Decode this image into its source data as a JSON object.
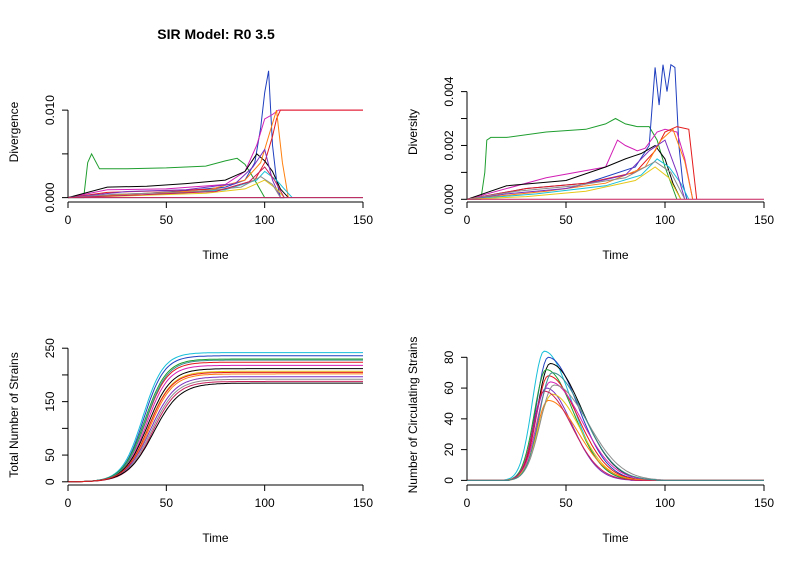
{
  "figure_title": "SIR Model: R0 3.5",
  "palette": [
    "#000000",
    "#e41a1c",
    "#1f9e2f",
    "#1f3fbf",
    "#17bfd9",
    "#d21fb5",
    "#e6c81a",
    "#8c8c8c",
    "#ff7f0e",
    "#7b2fbf",
    "#c71f5a",
    "#3a8f8f"
  ],
  "chart_data": [
    {
      "type": "line",
      "title": "SIR Model: R0 3.5",
      "xlabel": "Time",
      "ylabel": "Divergence",
      "xlim": [
        0,
        150
      ],
      "ylim": [
        -0.0005,
        0.0155
      ],
      "xticks": [
        0,
        50,
        100,
        150
      ],
      "yticks": [
        0.0,
        0.005,
        0.01
      ],
      "ytick_labels": [
        "0.000",
        "",
        "0.010"
      ],
      "grid": false,
      "legend": "none",
      "note_series": "many overlapping stochastic runs; representative series shown",
      "series": [
        {
          "color": "#1f9e2f",
          "x": [
            0,
            8,
            10,
            12,
            16,
            30,
            50,
            70,
            80,
            86,
            90,
            95,
            100,
            104,
            110
          ],
          "y": [
            0,
            0,
            0.004,
            0.005,
            0.0033,
            0.0033,
            0.0034,
            0.0036,
            0.0042,
            0.0045,
            0.0038,
            0.002,
            0,
            0,
            0
          ]
        },
        {
          "color": "#1f3fbf",
          "x": [
            0,
            20,
            40,
            60,
            80,
            90,
            95,
            98,
            100,
            102,
            104,
            106,
            108,
            110
          ],
          "y": [
            0,
            0.0003,
            0.0005,
            0.0008,
            0.0012,
            0.002,
            0.004,
            0.008,
            0.012,
            0.0145,
            0.006,
            0.002,
            0,
            0
          ]
        },
        {
          "color": "#d21fb5",
          "x": [
            0,
            20,
            50,
            80,
            90,
            96,
            100,
            104,
            107,
            110,
            115,
            130,
            150
          ],
          "y": [
            0,
            0.0009,
            0.001,
            0.0015,
            0.003,
            0.006,
            0.009,
            0.0095,
            0.01,
            0.01,
            0.01,
            0.01,
            0.01
          ]
        },
        {
          "color": "#e41a1c",
          "x": [
            0,
            20,
            50,
            80,
            95,
            100,
            104,
            106,
            108,
            112,
            130,
            150
          ],
          "y": [
            0,
            0.0006,
            0.0008,
            0.001,
            0.002,
            0.004,
            0.007,
            0.009,
            0.01,
            0.01,
            0.01,
            0.01
          ]
        },
        {
          "color": "#000000",
          "x": [
            0,
            20,
            40,
            60,
            80,
            90,
            96,
            100,
            104,
            108,
            112
          ],
          "y": [
            0,
            0.0012,
            0.0013,
            0.0016,
            0.002,
            0.003,
            0.005,
            0.0042,
            0.003,
            0.001,
            0
          ]
        },
        {
          "color": "#ff7f0e",
          "x": [
            0,
            40,
            70,
            90,
            98,
            102,
            106,
            109,
            112
          ],
          "y": [
            0,
            0.0005,
            0.0008,
            0.002,
            0.004,
            0.007,
            0.01,
            0.004,
            0
          ]
        },
        {
          "color": "#17bfd9",
          "x": [
            0,
            50,
            80,
            96,
            100,
            106,
            110,
            114
          ],
          "y": [
            0,
            0.0004,
            0.0009,
            0.002,
            0.003,
            0.002,
            0.001,
            0
          ]
        },
        {
          "color": "#7b2fbf",
          "x": [
            0,
            30,
            60,
            85,
            94,
            100,
            104,
            108
          ],
          "y": [
            0,
            0.0007,
            0.0009,
            0.0016,
            0.0035,
            0.0055,
            0.002,
            0
          ]
        },
        {
          "color": "#e6c81a",
          "x": [
            0,
            30,
            70,
            90,
            100,
            106,
            110
          ],
          "y": [
            0,
            0.0002,
            0.0005,
            0.001,
            0.002,
            0.001,
            0
          ]
        },
        {
          "color": "#8c8c8c",
          "x": [
            0,
            25,
            60,
            88,
            98,
            104,
            108
          ],
          "y": [
            0,
            0.0004,
            0.0006,
            0.0012,
            0.0024,
            0.0015,
            0
          ]
        },
        {
          "color": "#c71f5a",
          "x": [
            0,
            35,
            75,
            92,
            100,
            105,
            110
          ],
          "y": [
            0,
            0.0003,
            0.0007,
            0.0018,
            0.0035,
            0.002,
            0
          ]
        },
        {
          "color": "#3a8f8f",
          "x": [
            0,
            150
          ],
          "y": [
            0,
            0
          ]
        },
        {
          "color": "#c71f5a",
          "x": [
            0,
            150
          ],
          "y": [
            0,
            0
          ]
        }
      ]
    },
    {
      "type": "line",
      "title": "",
      "xlabel": "Time",
      "ylabel": "Diversity",
      "xlim": [
        0,
        150
      ],
      "ylim": [
        -0.0001,
        0.0051
      ],
      "xticks": [
        0,
        50,
        100,
        150
      ],
      "yticks": [
        0.0,
        0.001,
        0.002,
        0.003,
        0.004
      ],
      "ytick_labels": [
        "0.000",
        "",
        "0.002",
        "",
        "0.004"
      ],
      "grid": false,
      "legend": "none",
      "series": [
        {
          "color": "#1f9e2f",
          "x": [
            0,
            7,
            9,
            10,
            12,
            20,
            40,
            60,
            70,
            75,
            80,
            86,
            92,
            96,
            100,
            104,
            106
          ],
          "y": [
            0,
            0,
            0.001,
            0.0022,
            0.0023,
            0.0023,
            0.0025,
            0.0026,
            0.0028,
            0.003,
            0.0028,
            0.0027,
            0.0027,
            0.0022,
            0.0012,
            0.0004,
            0
          ]
        },
        {
          "color": "#1f3fbf",
          "x": [
            0,
            30,
            60,
            85,
            92,
            95,
            97,
            99,
            101,
            103,
            105,
            107,
            109,
            111
          ],
          "y": [
            0,
            0.0004,
            0.0006,
            0.0012,
            0.002,
            0.0049,
            0.0035,
            0.005,
            0.004,
            0.005,
            0.0049,
            0.002,
            0.0006,
            0
          ]
        },
        {
          "color": "#d21fb5",
          "x": [
            0,
            40,
            70,
            76,
            80,
            86,
            90,
            96,
            100,
            106,
            110,
            114
          ],
          "y": [
            0,
            0.0008,
            0.0012,
            0.0022,
            0.002,
            0.0018,
            0.0019,
            0.0025,
            0.0026,
            0.0025,
            0.0015,
            0
          ]
        },
        {
          "color": "#000000",
          "x": [
            0,
            20,
            50,
            70,
            80,
            88,
            95,
            100,
            104,
            108
          ],
          "y": [
            0,
            0.0005,
            0.0007,
            0.0012,
            0.0015,
            0.0017,
            0.002,
            0.0015,
            0.0006,
            0
          ]
        },
        {
          "color": "#e41a1c",
          "x": [
            0,
            30,
            60,
            85,
            95,
            100,
            106,
            112,
            116
          ],
          "y": [
            0,
            0.0004,
            0.0006,
            0.001,
            0.0018,
            0.0025,
            0.0027,
            0.0026,
            0
          ]
        },
        {
          "color": "#ff7f0e",
          "x": [
            0,
            40,
            70,
            90,
            98,
            104,
            110,
            114
          ],
          "y": [
            0,
            0.0003,
            0.0006,
            0.0012,
            0.0022,
            0.0026,
            0.0014,
            0
          ]
        },
        {
          "color": "#17bfd9",
          "x": [
            0,
            35,
            70,
            88,
            96,
            102,
            108,
            112
          ],
          "y": [
            0,
            0.0002,
            0.0005,
            0.0009,
            0.0015,
            0.0012,
            0.0006,
            0
          ]
        },
        {
          "color": "#7b2fbf",
          "x": [
            0,
            20,
            50,
            80,
            92,
            100,
            106,
            110
          ],
          "y": [
            0,
            0.0002,
            0.0004,
            0.0009,
            0.0018,
            0.0022,
            0.001,
            0
          ]
        },
        {
          "color": "#e6c81a",
          "x": [
            0,
            30,
            60,
            85,
            95,
            102,
            108
          ],
          "y": [
            0,
            0.0001,
            0.0003,
            0.0007,
            0.0012,
            0.0008,
            0
          ]
        },
        {
          "color": "#8c8c8c",
          "x": [
            0,
            25,
            55,
            80,
            95,
            103,
            110
          ],
          "y": [
            0,
            0.0003,
            0.0005,
            0.0008,
            0.0014,
            0.001,
            0
          ]
        },
        {
          "color": "#c71f5a",
          "x": [
            0,
            150
          ],
          "y": [
            0,
            0
          ]
        }
      ]
    },
    {
      "type": "line",
      "title": "",
      "xlabel": "Time",
      "ylabel": "Total Number of Strains",
      "xlim": [
        0,
        150
      ],
      "ylim": [
        -6,
        256
      ],
      "xticks": [
        0,
        50,
        100,
        150
      ],
      "yticks": [
        0,
        50,
        100,
        150,
        200,
        250
      ],
      "ytick_labels": [
        "0",
        "50",
        "",
        "150",
        "",
        "250"
      ],
      "grid": false,
      "legend": "none",
      "logistic_runs": [
        {
          "color": "#17bfd9",
          "asymptote": 242,
          "midpoint": 38,
          "rate": 0.19
        },
        {
          "color": "#1f3fbf",
          "asymptote": 236,
          "midpoint": 38.5,
          "rate": 0.19
        },
        {
          "color": "#1f9e2f",
          "asymptote": 230,
          "midpoint": 39,
          "rate": 0.18
        },
        {
          "color": "#e41a1c",
          "asymptote": 224,
          "midpoint": 39.5,
          "rate": 0.18
        },
        {
          "color": "#d21fb5",
          "asymptote": 218,
          "midpoint": 40,
          "rate": 0.18
        },
        {
          "color": "#000000",
          "asymptote": 212,
          "midpoint": 40.5,
          "rate": 0.17
        },
        {
          "color": "#e6c81a",
          "asymptote": 207,
          "midpoint": 41,
          "rate": 0.17
        },
        {
          "color": "#ff7f0e",
          "asymptote": 202,
          "midpoint": 41.5,
          "rate": 0.17
        },
        {
          "color": "#7b2fbf",
          "asymptote": 197,
          "midpoint": 42,
          "rate": 0.16
        },
        {
          "color": "#8c8c8c",
          "asymptote": 192,
          "midpoint": 42.5,
          "rate": 0.16
        },
        {
          "color": "#c71f5a",
          "asymptote": 188,
          "midpoint": 43,
          "rate": 0.16
        },
        {
          "color": "#000000",
          "asymptote": 185,
          "midpoint": 43.5,
          "rate": 0.15
        },
        {
          "color": "#3a8f8f",
          "asymptote": 228,
          "midpoint": 39.5,
          "rate": 0.18
        },
        {
          "color": "#e41a1c",
          "asymptote": 205,
          "midpoint": 41,
          "rate": 0.17
        }
      ]
    },
    {
      "type": "line",
      "title": "",
      "xlabel": "Time",
      "ylabel": "Number of Circulating Strains",
      "xlim": [
        0,
        150
      ],
      "ylim": [
        -3,
        88
      ],
      "xticks": [
        0,
        50,
        100,
        150
      ],
      "yticks": [
        0,
        20,
        40,
        60,
        80
      ],
      "ytick_labels": [
        "0",
        "20",
        "40",
        "60",
        "80"
      ],
      "grid": false,
      "legend": "none",
      "peak_runs": [
        {
          "color": "#17bfd9",
          "peak": 84,
          "peak_time": 39,
          "rise": 6,
          "decay": 14
        },
        {
          "color": "#1f3fbf",
          "peak": 80,
          "peak_time": 41,
          "rise": 6,
          "decay": 15
        },
        {
          "color": "#000000",
          "peak": 76,
          "peak_time": 42,
          "rise": 6.5,
          "decay": 16
        },
        {
          "color": "#1f9e2f",
          "peak": 72,
          "peak_time": 40,
          "rise": 6,
          "decay": 14
        },
        {
          "color": "#e41a1c",
          "peak": 68,
          "peak_time": 41,
          "rise": 6,
          "decay": 15
        },
        {
          "color": "#d21fb5",
          "peak": 64,
          "peak_time": 42,
          "rise": 6.5,
          "decay": 16
        },
        {
          "color": "#7b2fbf",
          "peak": 60,
          "peak_time": 40,
          "rise": 6,
          "decay": 13
        },
        {
          "color": "#e6c81a",
          "peak": 56,
          "peak_time": 43,
          "rise": 7,
          "decay": 14
        },
        {
          "color": "#ff7f0e",
          "peak": 52,
          "peak_time": 41,
          "rise": 6,
          "decay": 15
        },
        {
          "color": "#8c8c8c",
          "peak": 62,
          "peak_time": 44,
          "rise": 7,
          "decay": 17
        },
        {
          "color": "#c71f5a",
          "peak": 58,
          "peak_time": 39,
          "rise": 5.5,
          "decay": 14
        },
        {
          "color": "#3a8f8f",
          "peak": 70,
          "peak_time": 43,
          "rise": 6.5,
          "decay": 16
        }
      ]
    }
  ]
}
